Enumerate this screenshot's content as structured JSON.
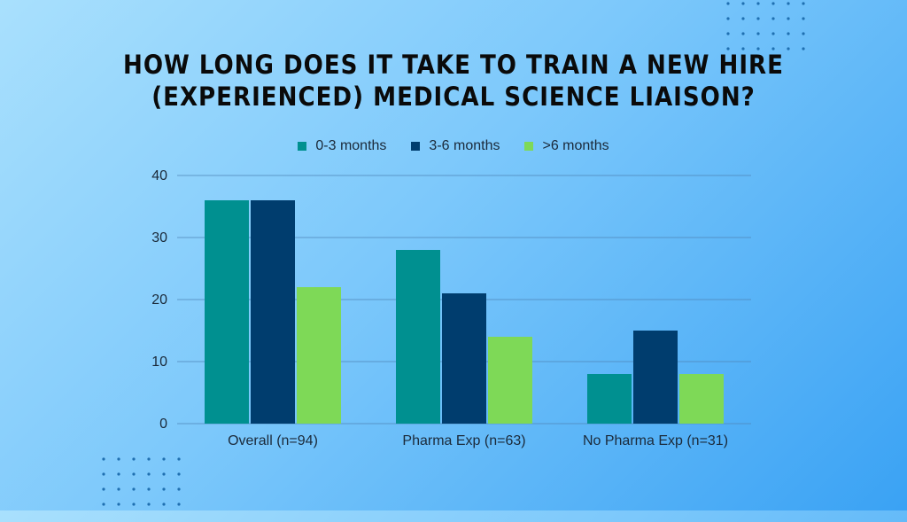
{
  "chart_data": {
    "type": "bar",
    "title_lines": [
      "How long does it take to train a new hire",
      "(experienced) medical science liaison?"
    ],
    "categories": [
      "Overall (n=94)",
      "Pharma Exp (n=63)",
      "No Pharma Exp (n=31)"
    ],
    "series": [
      {
        "name": "0-3 months",
        "values": [
          36,
          28,
          8
        ],
        "color": "#009090"
      },
      {
        "name": "3-6 months",
        "values": [
          36,
          21,
          15
        ],
        "color": "#003d6e"
      },
      {
        "name": ">6 months",
        "values": [
          22,
          14,
          8
        ],
        "color": "#7ed957"
      }
    ],
    "ylim": [
      0,
      40
    ],
    "yticks": [
      0,
      10,
      20,
      30,
      40
    ],
    "grid": true,
    "legend_position": "top-center"
  }
}
